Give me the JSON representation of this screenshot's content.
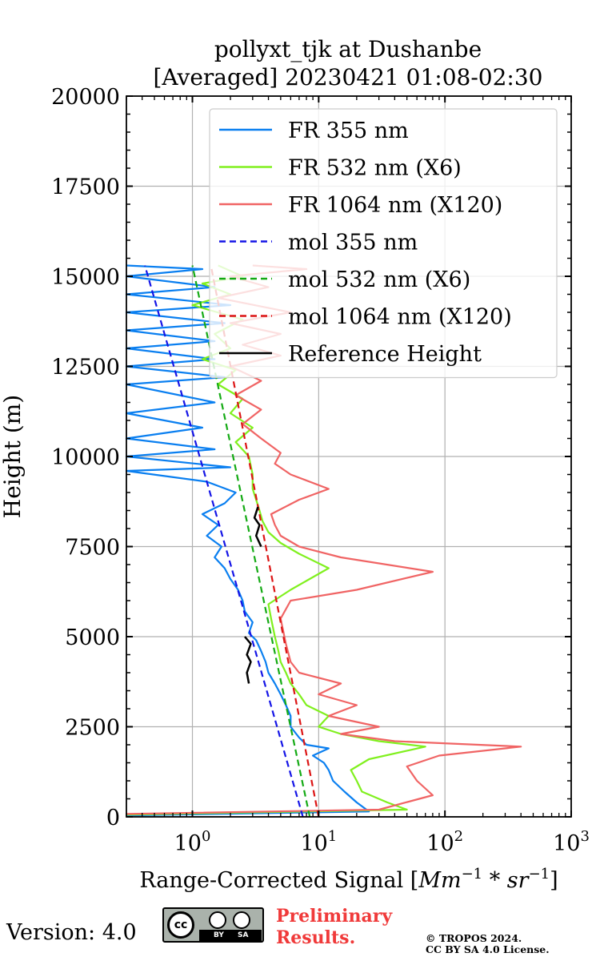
{
  "chart_data": {
    "type": "line",
    "title_line1": "pollyxt_tjk at Dushanbe",
    "title_line2": "[Averaged] 20230421 01:08-02:30",
    "xlabel_text": "Range-Corrected Signal [",
    "xlabel_math": "Mm",
    "xlabel_exp1": "−1",
    "xlabel_mid": " * sr",
    "xlabel_exp2": "−1",
    "xlabel_end": "]",
    "ylabel": "Height (m)",
    "x_scale": "log",
    "xlim": [
      0.3,
      1000
    ],
    "ylim": [
      0,
      20000
    ],
    "grid": true,
    "legend_position": "top-right",
    "y_ticks": [
      "0",
      "2500",
      "5000",
      "7500",
      "10000",
      "12500",
      "15000",
      "17500",
      "20000"
    ],
    "x_ticks": [
      {
        "base": "10",
        "exp": "0",
        "value": 1
      },
      {
        "base": "10",
        "exp": "1",
        "value": 10
      },
      {
        "base": "10",
        "exp": "2",
        "value": 100
      },
      {
        "base": "10",
        "exp": "3",
        "value": 1000
      }
    ],
    "series": [
      {
        "name": "FR 355 nm",
        "color": "#0a7ff0",
        "style": "solid",
        "points": [
          [
            0.3,
            40
          ],
          [
            25,
            150
          ],
          [
            20,
            400
          ],
          [
            16,
            700
          ],
          [
            13,
            1000
          ],
          [
            12,
            1300
          ],
          [
            11,
            1500
          ],
          [
            9,
            1700
          ],
          [
            12,
            1900
          ],
          [
            8,
            2000
          ],
          [
            7,
            2200
          ],
          [
            6,
            2500
          ],
          [
            6,
            2800
          ],
          [
            5.5,
            3100
          ],
          [
            5,
            3400
          ],
          [
            4.5,
            3700
          ],
          [
            4,
            4000
          ],
          [
            3.8,
            4300
          ],
          [
            3.5,
            4600
          ],
          [
            3.2,
            4900
          ],
          [
            2.8,
            5100
          ],
          [
            3,
            5400
          ],
          [
            2.6,
            5700
          ],
          [
            2.5,
            6000
          ],
          [
            2.3,
            6300
          ],
          [
            2,
            6600
          ],
          [
            1.8,
            6900
          ],
          [
            1.5,
            7200
          ],
          [
            1.7,
            7500
          ],
          [
            1.3,
            7800
          ],
          [
            1.6,
            8100
          ],
          [
            1.2,
            8400
          ],
          [
            1.8,
            8700
          ],
          [
            2.2,
            9000
          ],
          [
            1.3,
            9300
          ],
          [
            0.3,
            9600
          ],
          [
            2,
            9700
          ],
          [
            0.3,
            10000
          ],
          [
            1.5,
            10200
          ],
          [
            0.3,
            10500
          ],
          [
            1.2,
            10800
          ],
          [
            0.3,
            11200
          ],
          [
            1.5,
            11500
          ],
          [
            0.3,
            12000
          ],
          [
            1.8,
            12200
          ],
          [
            0.3,
            12500
          ],
          [
            1.5,
            12700
          ],
          [
            0.3,
            13000
          ],
          [
            1.5,
            13200
          ],
          [
            0.3,
            13500
          ],
          [
            1.8,
            13700
          ],
          [
            0.3,
            14000
          ],
          [
            2,
            14200
          ],
          [
            0.3,
            14500
          ],
          [
            1.5,
            14700
          ],
          [
            0.3,
            15000
          ],
          [
            1.2,
            15200
          ],
          [
            0.3,
            15300
          ]
        ]
      },
      {
        "name": "FR 532 nm (X6)",
        "color": "#80f01e",
        "style": "solid",
        "points": [
          [
            0.3,
            60
          ],
          [
            50,
            200
          ],
          [
            35,
            400
          ],
          [
            22,
            700
          ],
          [
            20,
            1000
          ],
          [
            18,
            1300
          ],
          [
            25,
            1600
          ],
          [
            70,
            1950
          ],
          [
            30,
            2100
          ],
          [
            15,
            2300
          ],
          [
            10,
            2500
          ],
          [
            12,
            2800
          ],
          [
            8,
            3100
          ],
          [
            7,
            3400
          ],
          [
            6,
            3700
          ],
          [
            5.5,
            4000
          ],
          [
            5,
            4300
          ],
          [
            4.8,
            4600
          ],
          [
            4.5,
            5000
          ],
          [
            4.2,
            5500
          ],
          [
            4,
            5900
          ],
          [
            6,
            6300
          ],
          [
            12,
            6900
          ],
          [
            7,
            7300
          ],
          [
            5,
            7600
          ],
          [
            4,
            7900
          ],
          [
            3.6,
            8200
          ],
          [
            3.4,
            8500
          ],
          [
            3.2,
            8800
          ],
          [
            3,
            9100
          ],
          [
            3,
            9500
          ],
          [
            2.8,
            10000
          ],
          [
            2.2,
            10400
          ],
          [
            3,
            10800
          ],
          [
            2,
            11200
          ],
          [
            2.5,
            11600
          ],
          [
            1.6,
            12000
          ],
          [
            2.2,
            12400
          ],
          [
            1.2,
            12700
          ],
          [
            2,
            13000
          ],
          [
            1.5,
            13400
          ],
          [
            2.5,
            13800
          ],
          [
            1,
            14200
          ],
          [
            2,
            14500
          ],
          [
            1.2,
            14800
          ],
          [
            2.5,
            15000
          ],
          [
            1.6,
            15300
          ]
        ]
      },
      {
        "name": "FR 1064 nm (X120)",
        "color": "#f06464",
        "style": "solid",
        "points": [
          [
            0.3,
            80
          ],
          [
            30,
            200
          ],
          [
            80,
            600
          ],
          [
            60,
            1000
          ],
          [
            50,
            1400
          ],
          [
            90,
            1700
          ],
          [
            400,
            1950
          ],
          [
            40,
            2100
          ],
          [
            15,
            2300
          ],
          [
            30,
            2500
          ],
          [
            12,
            2800
          ],
          [
            20,
            3100
          ],
          [
            10,
            3400
          ],
          [
            15,
            3700
          ],
          [
            7,
            4000
          ],
          [
            6,
            4300
          ],
          [
            5.5,
            4800
          ],
          [
            5,
            5500
          ],
          [
            6,
            6000
          ],
          [
            20,
            6300
          ],
          [
            80,
            6800
          ],
          [
            15,
            7200
          ],
          [
            7,
            7500
          ],
          [
            5,
            7800
          ],
          [
            4.5,
            8100
          ],
          [
            4.2,
            8400
          ],
          [
            7,
            8800
          ],
          [
            12,
            9100
          ],
          [
            6,
            9500
          ],
          [
            4.5,
            9800
          ],
          [
            5,
            10100
          ],
          [
            3.5,
            10500
          ],
          [
            2.5,
            10900
          ],
          [
            3.5,
            11300
          ],
          [
            2.2,
            11700
          ],
          [
            3.5,
            12100
          ],
          [
            2,
            12500
          ],
          [
            5,
            12800
          ],
          [
            2.5,
            13100
          ],
          [
            5,
            13400
          ],
          [
            2,
            13700
          ],
          [
            6,
            14000
          ],
          [
            1.6,
            14400
          ],
          [
            4,
            14700
          ],
          [
            2,
            15000
          ],
          [
            8,
            15200
          ],
          [
            3,
            15300
          ]
        ]
      },
      {
        "name": "mol 355 nm",
        "color": "#1414e6",
        "style": "dashed",
        "points": [
          [
            7.5,
            0
          ],
          [
            0.42,
            15300
          ]
        ]
      },
      {
        "name": "mol 532 nm (X6)",
        "color": "#14aa14",
        "style": "dashed",
        "points": [
          [
            8.5,
            0
          ],
          [
            1.0,
            15300
          ]
        ]
      },
      {
        "name": "mol 1064 nm (X120)",
        "color": "#dc1414",
        "style": "dashed",
        "points": [
          [
            10,
            0
          ],
          [
            1.4,
            15300
          ]
        ]
      },
      {
        "name": "Reference Height",
        "color": "#000000",
        "style": "solid",
        "points": [
          [
            2.8,
            3700
          ],
          [
            2.7,
            4000
          ],
          [
            2.9,
            4300
          ],
          [
            2.7,
            4500
          ],
          [
            2.9,
            4800
          ],
          [
            2.6,
            5000
          ]
        ],
        "points2": [
          [
            3.5,
            7500
          ],
          [
            3.2,
            7800
          ],
          [
            3.4,
            8100
          ],
          [
            3.1,
            8300
          ],
          [
            3.3,
            8600
          ]
        ]
      }
    ]
  },
  "footer": {
    "version": "Version: 4.0",
    "badge_by": "BY",
    "badge_sa": "SA",
    "preliminary": "Preliminary\nResults.",
    "copyright_line1": "© TROPOS 2024.",
    "copyright_line2": "CC BY SA 4.0 License."
  }
}
